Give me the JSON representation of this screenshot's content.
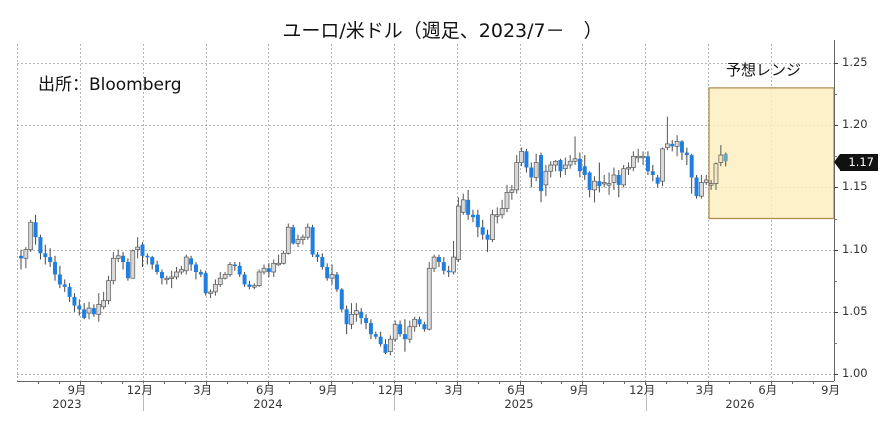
{
  "title": "ユーロ/米ドル（週足、2023/7－　）",
  "source": "出所：Bloomberg",
  "range_label": "予想レンジ",
  "last_value_badge": "1.17",
  "colors": {
    "up_candle": "#d9d9d9",
    "up_candle_border": "#555555",
    "down_candle": "#1f7fe0",
    "range_fill": "#fdeec0",
    "range_border": "#a8894a",
    "grid": "#b5b5b5"
  },
  "chart_data": {
    "type": "candlestick",
    "title": "ユーロ/米ドル（週足、2023/7－　）",
    "xlabel": "",
    "ylabel": "",
    "ylim": [
      1.0,
      1.25
    ],
    "y_ticks": [
      "1.25",
      "1.20",
      "1.15",
      "1.10",
      "1.05",
      "1.00"
    ],
    "x_ticks": [
      {
        "label": "9月",
        "year": "2023"
      },
      {
        "label": "12月",
        "year": "2023"
      },
      {
        "label": "3月",
        "year": "2024"
      },
      {
        "label": "6月",
        "year": "2024"
      },
      {
        "label": "9月",
        "year": "2024"
      },
      {
        "label": "12月",
        "year": "2024"
      },
      {
        "label": "3月",
        "year": "2025"
      },
      {
        "label": "6月",
        "year": "2025"
      },
      {
        "label": "9月",
        "year": "2025"
      },
      {
        "label": "12月",
        "year": "2025"
      },
      {
        "label": "3月",
        "year": "2026"
      },
      {
        "label": "6月",
        "year": "2026"
      },
      {
        "label": "9月",
        "year": "2026"
      }
    ],
    "year_labels": [
      "2023",
      "2024",
      "2025",
      "2026"
    ],
    "grid": true,
    "forecast_range": {
      "label": "予想レンジ",
      "low": 1.125,
      "high": 1.23,
      "from": "2026-03",
      "to": "2026-10"
    },
    "last_value": 1.17,
    "source": "Bloomberg",
    "candles_ohlc": [
      [
        1.095,
        1.093,
        1.1,
        1.084
      ],
      [
        1.093,
        1.1,
        1.102,
        1.085
      ],
      [
        1.1,
        1.122,
        1.124,
        1.098
      ],
      [
        1.122,
        1.11,
        1.128,
        1.104
      ],
      [
        1.11,
        1.097,
        1.112,
        1.092
      ],
      [
        1.097,
        1.094,
        1.104,
        1.088
      ],
      [
        1.094,
        1.09,
        1.101,
        1.086
      ],
      [
        1.09,
        1.08,
        1.095,
        1.075
      ],
      [
        1.08,
        1.072,
        1.087,
        1.069
      ],
      [
        1.072,
        1.07,
        1.076,
        1.066
      ],
      [
        1.07,
        1.062,
        1.073,
        1.058
      ],
      [
        1.062,
        1.055,
        1.065,
        1.05
      ],
      [
        1.055,
        1.052,
        1.06,
        1.047
      ],
      [
        1.052,
        1.045,
        1.057,
        1.044
      ],
      [
        1.049,
        1.053,
        1.058,
        1.044
      ],
      [
        1.053,
        1.048,
        1.056,
        1.046
      ],
      [
        1.048,
        1.056,
        1.065,
        1.042
      ],
      [
        1.054,
        1.059,
        1.066,
        1.052
      ],
      [
        1.059,
        1.075,
        1.079,
        1.056
      ],
      [
        1.075,
        1.093,
        1.098,
        1.072
      ],
      [
        1.093,
        1.095,
        1.1,
        1.09
      ],
      [
        1.095,
        1.09,
        1.098,
        1.084
      ],
      [
        1.09,
        1.077,
        1.093,
        1.075
      ],
      [
        1.077,
        1.099,
        1.1,
        1.077
      ],
      [
        1.1,
        1.102,
        1.11,
        1.093
      ],
      [
        1.104,
        1.095,
        1.106,
        1.086
      ],
      [
        1.095,
        1.094,
        1.097,
        1.088
      ],
      [
        1.094,
        1.088,
        1.095,
        1.084
      ],
      [
        1.088,
        1.082,
        1.091,
        1.08
      ],
      [
        1.082,
        1.077,
        1.084,
        1.072
      ],
      [
        1.077,
        1.077,
        1.079,
        1.072
      ],
      [
        1.077,
        1.078,
        1.083,
        1.069
      ],
      [
        1.078,
        1.082,
        1.086,
        1.076
      ],
      [
        1.082,
        1.084,
        1.087,
        1.08
      ],
      [
        1.083,
        1.094,
        1.096,
        1.08
      ],
      [
        1.093,
        1.088,
        1.095,
        1.083
      ],
      [
        1.088,
        1.082,
        1.09,
        1.076
      ],
      [
        1.082,
        1.08,
        1.084,
        1.078
      ],
      [
        1.081,
        1.065,
        1.083,
        1.063
      ],
      [
        1.065,
        1.066,
        1.068,
        1.061
      ],
      [
        1.066,
        1.072,
        1.076,
        1.063
      ],
      [
        1.072,
        1.077,
        1.082,
        1.07
      ],
      [
        1.077,
        1.08,
        1.082,
        1.076
      ],
      [
        1.08,
        1.088,
        1.09,
        1.078
      ],
      [
        1.088,
        1.087,
        1.09,
        1.083
      ],
      [
        1.087,
        1.08,
        1.09,
        1.078
      ],
      [
        1.08,
        1.072,
        1.082,
        1.07
      ],
      [
        1.072,
        1.07,
        1.075,
        1.068
      ],
      [
        1.07,
        1.071,
        1.073,
        1.068
      ],
      [
        1.071,
        1.082,
        1.084,
        1.07
      ],
      [
        1.082,
        1.085,
        1.088,
        1.08
      ],
      [
        1.085,
        1.082,
        1.089,
        1.078
      ],
      [
        1.082,
        1.089,
        1.092,
        1.078
      ],
      [
        1.089,
        1.089,
        1.096,
        1.087
      ],
      [
        1.089,
        1.097,
        1.099,
        1.088
      ],
      [
        1.097,
        1.118,
        1.121,
        1.096
      ],
      [
        1.118,
        1.105,
        1.12,
        1.104
      ],
      [
        1.105,
        1.108,
        1.112,
        1.102
      ],
      [
        1.108,
        1.11,
        1.112,
        1.104
      ],
      [
        1.11,
        1.118,
        1.121,
        1.108
      ],
      [
        1.118,
        1.096,
        1.12,
        1.094
      ],
      [
        1.096,
        1.094,
        1.098,
        1.09
      ],
      [
        1.094,
        1.086,
        1.097,
        1.084
      ],
      [
        1.086,
        1.077,
        1.089,
        1.075
      ],
      [
        1.077,
        1.08,
        1.088,
        1.072
      ],
      [
        1.08,
        1.068,
        1.082,
        1.066
      ],
      [
        1.068,
        1.052,
        1.069,
        1.05
      ],
      [
        1.052,
        1.04,
        1.055,
        1.032
      ],
      [
        1.04,
        1.048,
        1.057,
        1.036
      ],
      [
        1.048,
        1.051,
        1.057,
        1.042
      ],
      [
        1.05,
        1.045,
        1.053,
        1.04
      ],
      [
        1.045,
        1.041,
        1.048,
        1.036
      ],
      [
        1.041,
        1.032,
        1.044,
        1.028
      ],
      [
        1.032,
        1.03,
        1.034,
        1.028
      ],
      [
        1.03,
        1.024,
        1.034,
        1.022
      ],
      [
        1.024,
        1.017,
        1.028,
        1.016
      ],
      [
        1.018,
        1.028,
        1.031,
        1.015
      ],
      [
        1.028,
        1.04,
        1.043,
        1.026
      ],
      [
        1.04,
        1.032,
        1.043,
        1.03
      ],
      [
        1.032,
        1.028,
        1.044,
        1.018
      ],
      [
        1.028,
        1.038,
        1.043,
        1.025
      ],
      [
        1.038,
        1.044,
        1.046,
        1.034
      ],
      [
        1.044,
        1.04,
        1.046,
        1.038
      ],
      [
        1.04,
        1.036,
        1.042,
        1.034
      ],
      [
        1.036,
        1.085,
        1.09,
        1.035
      ],
      [
        1.085,
        1.094,
        1.096,
        1.082
      ],
      [
        1.094,
        1.09,
        1.096,
        1.086
      ],
      [
        1.09,
        1.083,
        1.094,
        1.08
      ],
      [
        1.083,
        1.082,
        1.087,
        1.078
      ],
      [
        1.082,
        1.094,
        1.107,
        1.08
      ],
      [
        1.092,
        1.135,
        1.142,
        1.09
      ],
      [
        1.13,
        1.14,
        1.145,
        1.128
      ],
      [
        1.14,
        1.128,
        1.148,
        1.124
      ],
      [
        1.128,
        1.126,
        1.132,
        1.122
      ],
      [
        1.128,
        1.118,
        1.132,
        1.11
      ],
      [
        1.118,
        1.112,
        1.124,
        1.108
      ],
      [
        1.112,
        1.108,
        1.116,
        1.098
      ],
      [
        1.108,
        1.128,
        1.132,
        1.106
      ],
      [
        1.128,
        1.128,
        1.134,
        1.121
      ],
      [
        1.128,
        1.133,
        1.14,
        1.125
      ],
      [
        1.133,
        1.146,
        1.152,
        1.13
      ],
      [
        1.146,
        1.148,
        1.152,
        1.14
      ],
      [
        1.148,
        1.17,
        1.176,
        1.145
      ],
      [
        1.17,
        1.179,
        1.182,
        1.167
      ],
      [
        1.179,
        1.166,
        1.181,
        1.162
      ],
      [
        1.166,
        1.158,
        1.17,
        1.15
      ],
      [
        1.158,
        1.17,
        1.177,
        1.155
      ],
      [
        1.176,
        1.147,
        1.178,
        1.138
      ],
      [
        1.152,
        1.163,
        1.168,
        1.143
      ],
      [
        1.163,
        1.168,
        1.171,
        1.158
      ],
      [
        1.168,
        1.171,
        1.172,
        1.163
      ],
      [
        1.172,
        1.163,
        1.173,
        1.158
      ],
      [
        1.165,
        1.168,
        1.174,
        1.16
      ],
      [
        1.168,
        1.171,
        1.176,
        1.165
      ],
      [
        1.171,
        1.173,
        1.191,
        1.168
      ],
      [
        1.173,
        1.163,
        1.178,
        1.158
      ],
      [
        1.167,
        1.16,
        1.176,
        1.156
      ],
      [
        1.162,
        1.148,
        1.163,
        1.142
      ],
      [
        1.148,
        1.155,
        1.159,
        1.138
      ],
      [
        1.155,
        1.151,
        1.17,
        1.146
      ],
      [
        1.153,
        1.154,
        1.16,
        1.15
      ],
      [
        1.153,
        1.153,
        1.162,
        1.144
      ],
      [
        1.154,
        1.16,
        1.166,
        1.148
      ],
      [
        1.16,
        1.152,
        1.164,
        1.142
      ],
      [
        1.152,
        1.165,
        1.168,
        1.15
      ],
      [
        1.165,
        1.166,
        1.17,
        1.16
      ],
      [
        1.166,
        1.175,
        1.179,
        1.163
      ],
      [
        1.175,
        1.175,
        1.181,
        1.17
      ],
      [
        1.174,
        1.175,
        1.179,
        1.168
      ],
      [
        1.175,
        1.163,
        1.179,
        1.16
      ],
      [
        1.163,
        1.16,
        1.168,
        1.155
      ],
      [
        1.158,
        1.153,
        1.16,
        1.15
      ],
      [
        1.155,
        1.181,
        1.182,
        1.151
      ],
      [
        1.182,
        1.185,
        1.207,
        1.18
      ],
      [
        1.185,
        1.183,
        1.188,
        1.179
      ],
      [
        1.183,
        1.187,
        1.192,
        1.175
      ],
      [
        1.187,
        1.178,
        1.188,
        1.172
      ],
      [
        1.178,
        1.176,
        1.182,
        1.168
      ],
      [
        1.176,
        1.158,
        1.177,
        1.145
      ],
      [
        1.158,
        1.143,
        1.16,
        1.141
      ],
      [
        1.143,
        1.154,
        1.16,
        1.141
      ],
      [
        1.154,
        1.156,
        1.16,
        1.152
      ],
      [
        1.153,
        1.153,
        1.156,
        1.148
      ],
      [
        1.153,
        1.169,
        1.17,
        1.148
      ],
      [
        1.17,
        1.176,
        1.184,
        1.167
      ],
      [
        1.177,
        1.171,
        1.178,
        1.167
      ]
    ]
  }
}
